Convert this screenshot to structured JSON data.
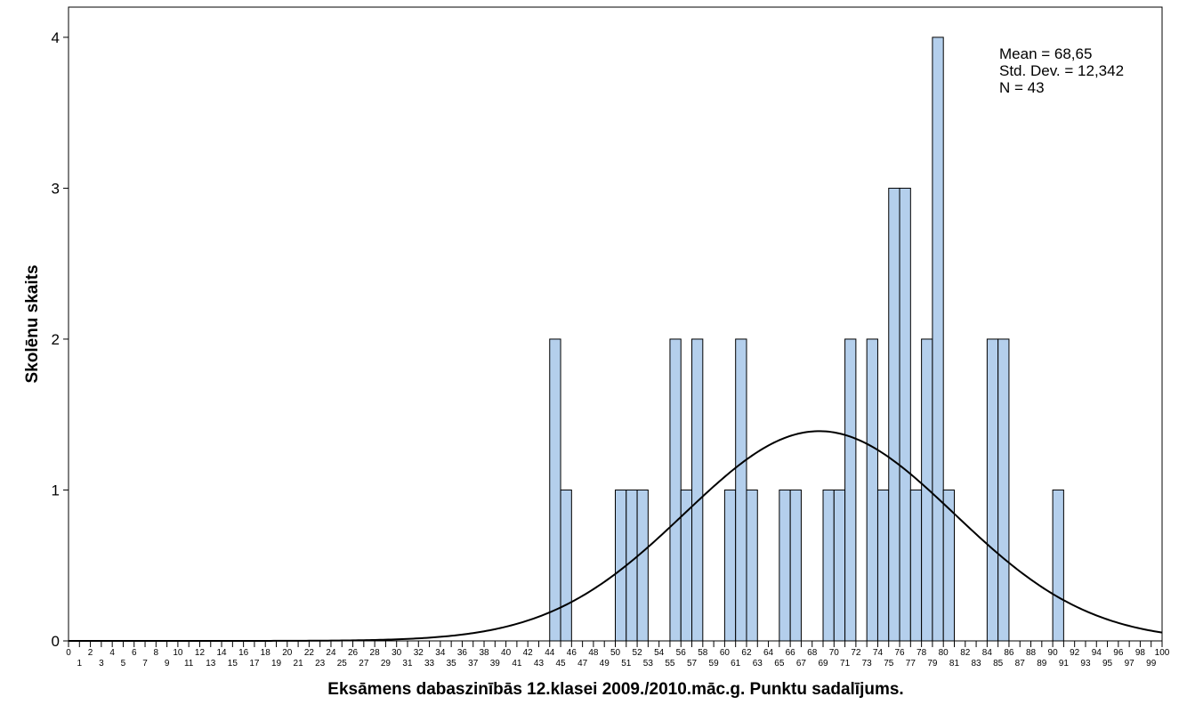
{
  "chart_data": {
    "type": "bar",
    "subtype": "histogram-with-normal-curve",
    "xlabel": "Eksāmens dabaszinībās 12.klasei 2009./2010.māc.g. Punktu sadalījums.",
    "ylabel": "Skolēnu skaits",
    "xlim": [
      0,
      100
    ],
    "ylim": [
      0,
      4.2
    ],
    "yticks": [
      0,
      1,
      2,
      3,
      4
    ],
    "xticks": [
      0,
      1,
      2,
      3,
      4,
      5,
      6,
      7,
      8,
      9,
      10,
      11,
      12,
      13,
      14,
      15,
      16,
      17,
      18,
      19,
      20,
      21,
      22,
      23,
      24,
      25,
      26,
      27,
      28,
      29,
      30,
      31,
      32,
      33,
      34,
      35,
      36,
      37,
      38,
      39,
      40,
      41,
      42,
      43,
      44,
      45,
      46,
      47,
      48,
      49,
      50,
      51,
      52,
      53,
      54,
      55,
      56,
      57,
      58,
      59,
      60,
      61,
      62,
      63,
      64,
      65,
      66,
      67,
      68,
      69,
      70,
      71,
      72,
      73,
      74,
      75,
      76,
      77,
      78,
      79,
      80,
      81,
      82,
      83,
      84,
      85,
      86,
      87,
      88,
      89,
      90,
      91,
      92,
      93,
      94,
      95,
      96,
      97,
      98,
      99,
      100
    ],
    "bin_width": 1,
    "bars": [
      {
        "x": 44,
        "count": 2
      },
      {
        "x": 45,
        "count": 1
      },
      {
        "x": 50,
        "count": 1
      },
      {
        "x": 51,
        "count": 1
      },
      {
        "x": 52,
        "count": 1
      },
      {
        "x": 55,
        "count": 2
      },
      {
        "x": 56,
        "count": 1
      },
      {
        "x": 57,
        "count": 2
      },
      {
        "x": 60,
        "count": 1
      },
      {
        "x": 61,
        "count": 2
      },
      {
        "x": 62,
        "count": 1
      },
      {
        "x": 65,
        "count": 1
      },
      {
        "x": 66,
        "count": 1
      },
      {
        "x": 69,
        "count": 1
      },
      {
        "x": 70,
        "count": 1
      },
      {
        "x": 71,
        "count": 2
      },
      {
        "x": 73,
        "count": 2
      },
      {
        "x": 74,
        "count": 1
      },
      {
        "x": 75,
        "count": 3
      },
      {
        "x": 76,
        "count": 3
      },
      {
        "x": 77,
        "count": 1
      },
      {
        "x": 78,
        "count": 2
      },
      {
        "x": 79,
        "count": 4
      },
      {
        "x": 80,
        "count": 1
      },
      {
        "x": 84,
        "count": 2
      },
      {
        "x": 85,
        "count": 2
      },
      {
        "x": 90,
        "count": 1
      }
    ],
    "normal_curve": {
      "mean": 68.65,
      "sd": 12.342,
      "n": 43
    },
    "stats_text": {
      "mean": "Mean = 68,65",
      "sd": "Std. Dev. = 12,342",
      "n": "N = 43"
    },
    "legend_position": "top-right",
    "grid": false,
    "colors": {
      "bar_fill": "#b4cfec",
      "bar_stroke": "#000000",
      "curve": "#000000",
      "background": "#ffffff"
    }
  }
}
